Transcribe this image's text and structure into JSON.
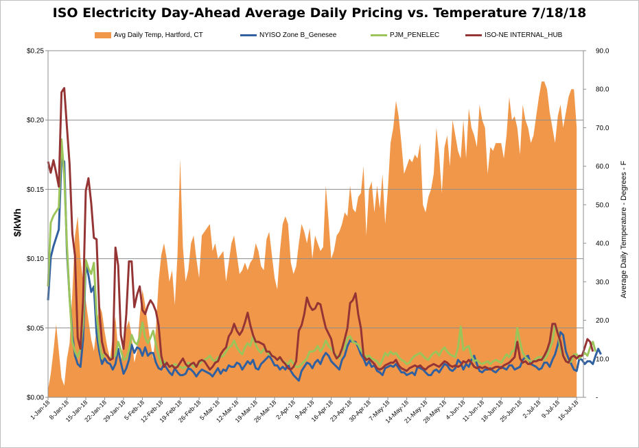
{
  "chart_data": {
    "type": "line",
    "title": "ISO Electricity Day-Ahead Average Daily Pricing vs. Temperature 7/18/18",
    "ylabel": "$/kWh",
    "y2label": "Average Daily Temperature - Degrees - F",
    "ylim": [
      0,
      0.25
    ],
    "y2lim": [
      0,
      90
    ],
    "yticks": [
      "$0.00",
      "$0.05",
      "$0.10",
      "$0.15",
      "$0.20",
      "$0.25"
    ],
    "y2ticks": [
      "-",
      "10.0",
      "20.0",
      "30.0",
      "40.0",
      "50.0",
      "60.0",
      "70.0",
      "80.0",
      "90.0"
    ],
    "xticks": [
      "1-Jan-18",
      "8-Jan-18",
      "15-Jan-18",
      "22-Jan-18",
      "29-Jan-18",
      "5-Feb-18",
      "12-Feb-18",
      "19-Feb-18",
      "26-Feb-18",
      "5-Mar-18",
      "12-Mar-18",
      "19-Mar-18",
      "26-Mar-18",
      "2-Apr-18",
      "9-Apr-18",
      "16-Apr-18",
      "23-Apr-18",
      "30-Apr-18",
      "7-May-18",
      "14-May-18",
      "21-May-18",
      "28-May-18",
      "4-Jun-18",
      "11-Jun-18",
      "18-Jun-18",
      "25-Jun-18",
      "2-Jul-18",
      "9-Jul-18",
      "16-Jul-18"
    ],
    "grid": "horizontal",
    "legend_position": "top",
    "series": [
      {
        "name": "Avg Daily Temp, Hartford, CT",
        "type": "area",
        "axis": "right",
        "color": "#f0974a",
        "x_start": 0,
        "values": [
          2,
          6,
          12,
          19,
          12,
          5,
          3,
          10,
          14,
          27,
          42,
          47,
          36,
          30,
          25,
          20,
          15,
          12,
          18,
          24,
          22,
          17,
          13,
          10,
          16,
          21,
          12,
          9,
          15,
          18,
          20,
          16,
          9,
          12,
          21,
          28,
          24,
          19,
          14,
          10,
          18,
          30,
          37,
          40,
          36,
          30,
          33,
          24,
          37,
          62,
          39,
          30,
          33,
          40,
          42,
          36,
          31,
          42,
          43,
          44,
          45,
          38,
          40,
          36,
          37,
          38,
          30,
          35,
          40,
          42,
          37,
          32,
          33,
          35,
          33,
          35,
          36,
          40,
          38,
          34,
          33,
          41,
          43,
          37,
          31,
          28,
          38,
          45,
          47,
          45,
          35,
          32,
          34,
          40,
          45,
          43,
          40,
          44,
          36,
          42,
          40,
          38,
          39,
          55,
          46,
          36,
          38,
          42,
          43,
          45,
          48,
          47,
          55,
          49,
          48,
          52,
          53,
          60,
          42,
          54,
          56,
          48,
          55,
          49,
          58,
          45,
          54,
          66,
          70,
          77,
          73,
          66,
          58,
          60,
          62,
          61,
          63,
          62,
          66,
          50,
          48,
          52,
          54,
          58,
          70,
          63,
          53,
          65,
          68,
          60,
          72,
          68,
          64,
          62,
          72,
          62,
          75,
          70,
          68,
          65,
          76,
          72,
          70,
          58,
          65,
          64,
          66,
          66,
          66,
          62,
          68,
          78,
          72,
          73,
          70,
          63,
          76,
          72,
          70,
          66,
          68,
          73,
          78,
          82,
          82,
          80,
          74,
          70,
          66,
          73,
          76,
          70,
          74,
          78,
          80,
          80,
          70
        ]
      },
      {
        "name": "NYISO Zone B_Genesee",
        "type": "line",
        "axis": "left",
        "color": "#3160a0",
        "values": [
          0.07,
          0.101,
          0.109,
          0.115,
          0.121,
          0.172,
          0.17,
          0.105,
          0.072,
          0.045,
          0.03,
          0.024,
          0.022,
          0.042,
          0.096,
          0.088,
          0.076,
          0.08,
          0.046,
          0.033,
          0.024,
          0.028,
          0.025,
          0.024,
          0.02,
          0.024,
          0.035,
          0.025,
          0.017,
          0.021,
          0.027,
          0.038,
          0.032,
          0.036,
          0.035,
          0.03,
          0.036,
          0.03,
          0.032,
          0.032,
          0.025,
          0.021,
          0.02,
          0.024,
          0.021,
          0.018,
          0.016,
          0.021,
          0.018,
          0.016,
          0.016,
          0.017,
          0.021,
          0.02,
          0.018,
          0.015,
          0.018,
          0.02,
          0.019,
          0.018,
          0.017,
          0.015,
          0.018,
          0.021,
          0.017,
          0.02,
          0.019,
          0.023,
          0.022,
          0.022,
          0.025,
          0.024,
          0.02,
          0.023,
          0.026,
          0.024,
          0.027,
          0.021,
          0.02,
          0.024,
          0.026,
          0.028,
          0.03,
          0.027,
          0.023,
          0.023,
          0.02,
          0.022,
          0.02,
          0.024,
          0.019,
          0.016,
          0.014,
          0.012,
          0.019,
          0.022,
          0.025,
          0.024,
          0.021,
          0.025,
          0.027,
          0.024,
          0.029,
          0.032,
          0.03,
          0.026,
          0.024,
          0.022,
          0.02,
          0.027,
          0.03,
          0.037,
          0.041,
          0.04,
          0.04,
          0.036,
          0.031,
          0.028,
          0.023,
          0.026,
          0.022,
          0.023,
          0.019,
          0.018,
          0.016,
          0.021,
          0.022,
          0.023,
          0.022,
          0.024,
          0.021,
          0.018,
          0.018,
          0.016,
          0.017,
          0.018,
          0.016,
          0.022,
          0.021,
          0.02,
          0.018,
          0.016,
          0.016,
          0.019,
          0.02,
          0.018,
          0.021,
          0.024,
          0.023,
          0.02,
          0.019,
          0.021,
          0.027,
          0.025,
          0.02,
          0.024,
          0.022,
          0.027,
          0.03,
          0.024,
          0.019,
          0.018,
          0.02,
          0.02,
          0.021,
          0.019,
          0.018,
          0.02,
          0.022,
          0.021,
          0.02,
          0.023,
          0.023,
          0.02,
          0.021,
          0.022,
          0.027,
          0.029,
          0.03,
          0.024,
          0.023,
          0.022,
          0.02,
          0.021,
          0.025,
          0.025,
          0.022,
          0.027,
          0.031,
          0.038,
          0.047,
          0.045,
          0.033,
          0.028,
          0.024,
          0.02,
          0.019,
          0.028,
          0.027,
          0.024,
          0.026,
          0.026,
          0.024,
          0.03,
          0.035,
          0.031
        ]
      },
      {
        "name": "PJM_PENELEC",
        "type": "line",
        "axis": "left",
        "color": "#9bc45a",
        "values": [
          0.08,
          0.126,
          0.131,
          0.134,
          0.137,
          0.186,
          0.16,
          0.11,
          0.072,
          0.04,
          0.033,
          0.029,
          0.035,
          0.053,
          0.099,
          0.093,
          0.089,
          0.097,
          0.06,
          0.04,
          0.028,
          0.032,
          0.03,
          0.028,
          0.029,
          0.03,
          0.04,
          0.034,
          0.027,
          0.028,
          0.034,
          0.045,
          0.04,
          0.038,
          0.044,
          0.054,
          0.043,
          0.039,
          0.043,
          0.048,
          0.038,
          0.03,
          0.024,
          0.026,
          0.024,
          0.023,
          0.022,
          0.024,
          0.023,
          0.022,
          0.021,
          0.022,
          0.025,
          0.024,
          0.022,
          0.023,
          0.024,
          0.026,
          0.027,
          0.028,
          0.03,
          0.027,
          0.026,
          0.029,
          0.029,
          0.03,
          0.033,
          0.036,
          0.037,
          0.041,
          0.036,
          0.033,
          0.031,
          0.036,
          0.039,
          0.037,
          0.044,
          0.038,
          0.034,
          0.032,
          0.035,
          0.033,
          0.031,
          0.03,
          0.029,
          0.027,
          0.028,
          0.026,
          0.025,
          0.024,
          0.027,
          0.024,
          0.022,
          0.022,
          0.024,
          0.026,
          0.028,
          0.033,
          0.033,
          0.034,
          0.037,
          0.033,
          0.036,
          0.041,
          0.037,
          0.035,
          0.032,
          0.03,
          0.028,
          0.034,
          0.035,
          0.043,
          0.044,
          0.04,
          0.039,
          0.038,
          0.034,
          0.031,
          0.029,
          0.03,
          0.028,
          0.027,
          0.026,
          0.023,
          0.027,
          0.032,
          0.03,
          0.033,
          0.031,
          0.032,
          0.029,
          0.027,
          0.026,
          0.024,
          0.025,
          0.028,
          0.03,
          0.031,
          0.032,
          0.03,
          0.028,
          0.027,
          0.03,
          0.032,
          0.033,
          0.03,
          0.034,
          0.036,
          0.033,
          0.031,
          0.03,
          0.029,
          0.036,
          0.051,
          0.034,
          0.036,
          0.037,
          0.03,
          0.026,
          0.027,
          0.025,
          0.024,
          0.025,
          0.026,
          0.024,
          0.026,
          0.027,
          0.026,
          0.025,
          0.028,
          0.031,
          0.029,
          0.033,
          0.034,
          0.05,
          0.04,
          0.032,
          0.029,
          0.027,
          0.026,
          0.026,
          0.028,
          0.029,
          0.029,
          0.027,
          0.03,
          0.035,
          0.04,
          0.052,
          0.048,
          0.034,
          0.03,
          0.027,
          0.025,
          0.026,
          0.031,
          0.031,
          0.028,
          0.03,
          0.032,
          0.03,
          0.036,
          0.04,
          0.033
        ]
      },
      {
        "name": "ISO-NE INTERNAL_HUB",
        "type": "line",
        "axis": "left",
        "color": "#943434",
        "values": [
          0.17,
          0.162,
          0.171,
          0.162,
          0.152,
          0.22,
          0.223,
          0.195,
          0.168,
          0.118,
          0.102,
          0.043,
          0.035,
          0.07,
          0.149,
          0.158,
          0.14,
          0.115,
          0.114,
          0.062,
          0.04,
          0.032,
          0.03,
          0.027,
          0.028,
          0.108,
          0.095,
          0.045,
          0.035,
          0.06,
          0.098,
          0.098,
          0.065,
          0.074,
          0.08,
          0.063,
          0.06,
          0.066,
          0.07,
          0.067,
          0.062,
          0.052,
          0.03,
          0.022,
          0.025,
          0.022,
          0.023,
          0.021,
          0.022,
          0.025,
          0.028,
          0.024,
          0.022,
          0.024,
          0.025,
          0.022,
          0.026,
          0.027,
          0.026,
          0.023,
          0.02,
          0.022,
          0.025,
          0.026,
          0.031,
          0.034,
          0.036,
          0.044,
          0.047,
          0.053,
          0.048,
          0.045,
          0.048,
          0.054,
          0.061,
          0.052,
          0.045,
          0.04,
          0.04,
          0.039,
          0.038,
          0.033,
          0.033,
          0.03,
          0.029,
          0.027,
          0.029,
          0.026,
          0.024,
          0.021,
          0.02,
          0.022,
          0.026,
          0.048,
          0.052,
          0.06,
          0.072,
          0.066,
          0.063,
          0.064,
          0.068,
          0.067,
          0.058,
          0.05,
          0.046,
          0.042,
          0.032,
          0.028,
          0.03,
          0.035,
          0.042,
          0.05,
          0.068,
          0.07,
          0.075,
          0.06,
          0.05,
          0.03,
          0.027,
          0.028,
          0.026,
          0.024,
          0.021,
          0.02,
          0.021,
          0.023,
          0.024,
          0.025,
          0.025,
          0.027,
          0.023,
          0.021,
          0.02,
          0.019,
          0.021,
          0.022,
          0.023,
          0.022,
          0.023,
          0.021,
          0.02,
          0.022,
          0.023,
          0.024,
          0.023,
          0.022,
          0.024,
          0.026,
          0.025,
          0.023,
          0.022,
          0.023,
          0.022,
          0.023,
          0.026,
          0.025,
          0.027,
          0.025,
          0.022,
          0.021,
          0.022,
          0.021,
          0.022,
          0.021,
          0.02,
          0.021,
          0.022,
          0.022,
          0.021,
          0.023,
          0.024,
          0.025,
          0.027,
          0.029,
          0.04,
          0.028,
          0.025,
          0.026,
          0.024,
          0.024,
          0.026,
          0.026,
          0.027,
          0.027,
          0.03,
          0.034,
          0.04,
          0.053,
          0.053,
          0.046,
          0.04,
          0.03,
          0.026,
          0.025,
          0.029,
          0.03,
          0.028,
          0.03,
          0.03,
          0.036,
          0.042,
          0.04,
          0.033
        ]
      }
    ]
  }
}
